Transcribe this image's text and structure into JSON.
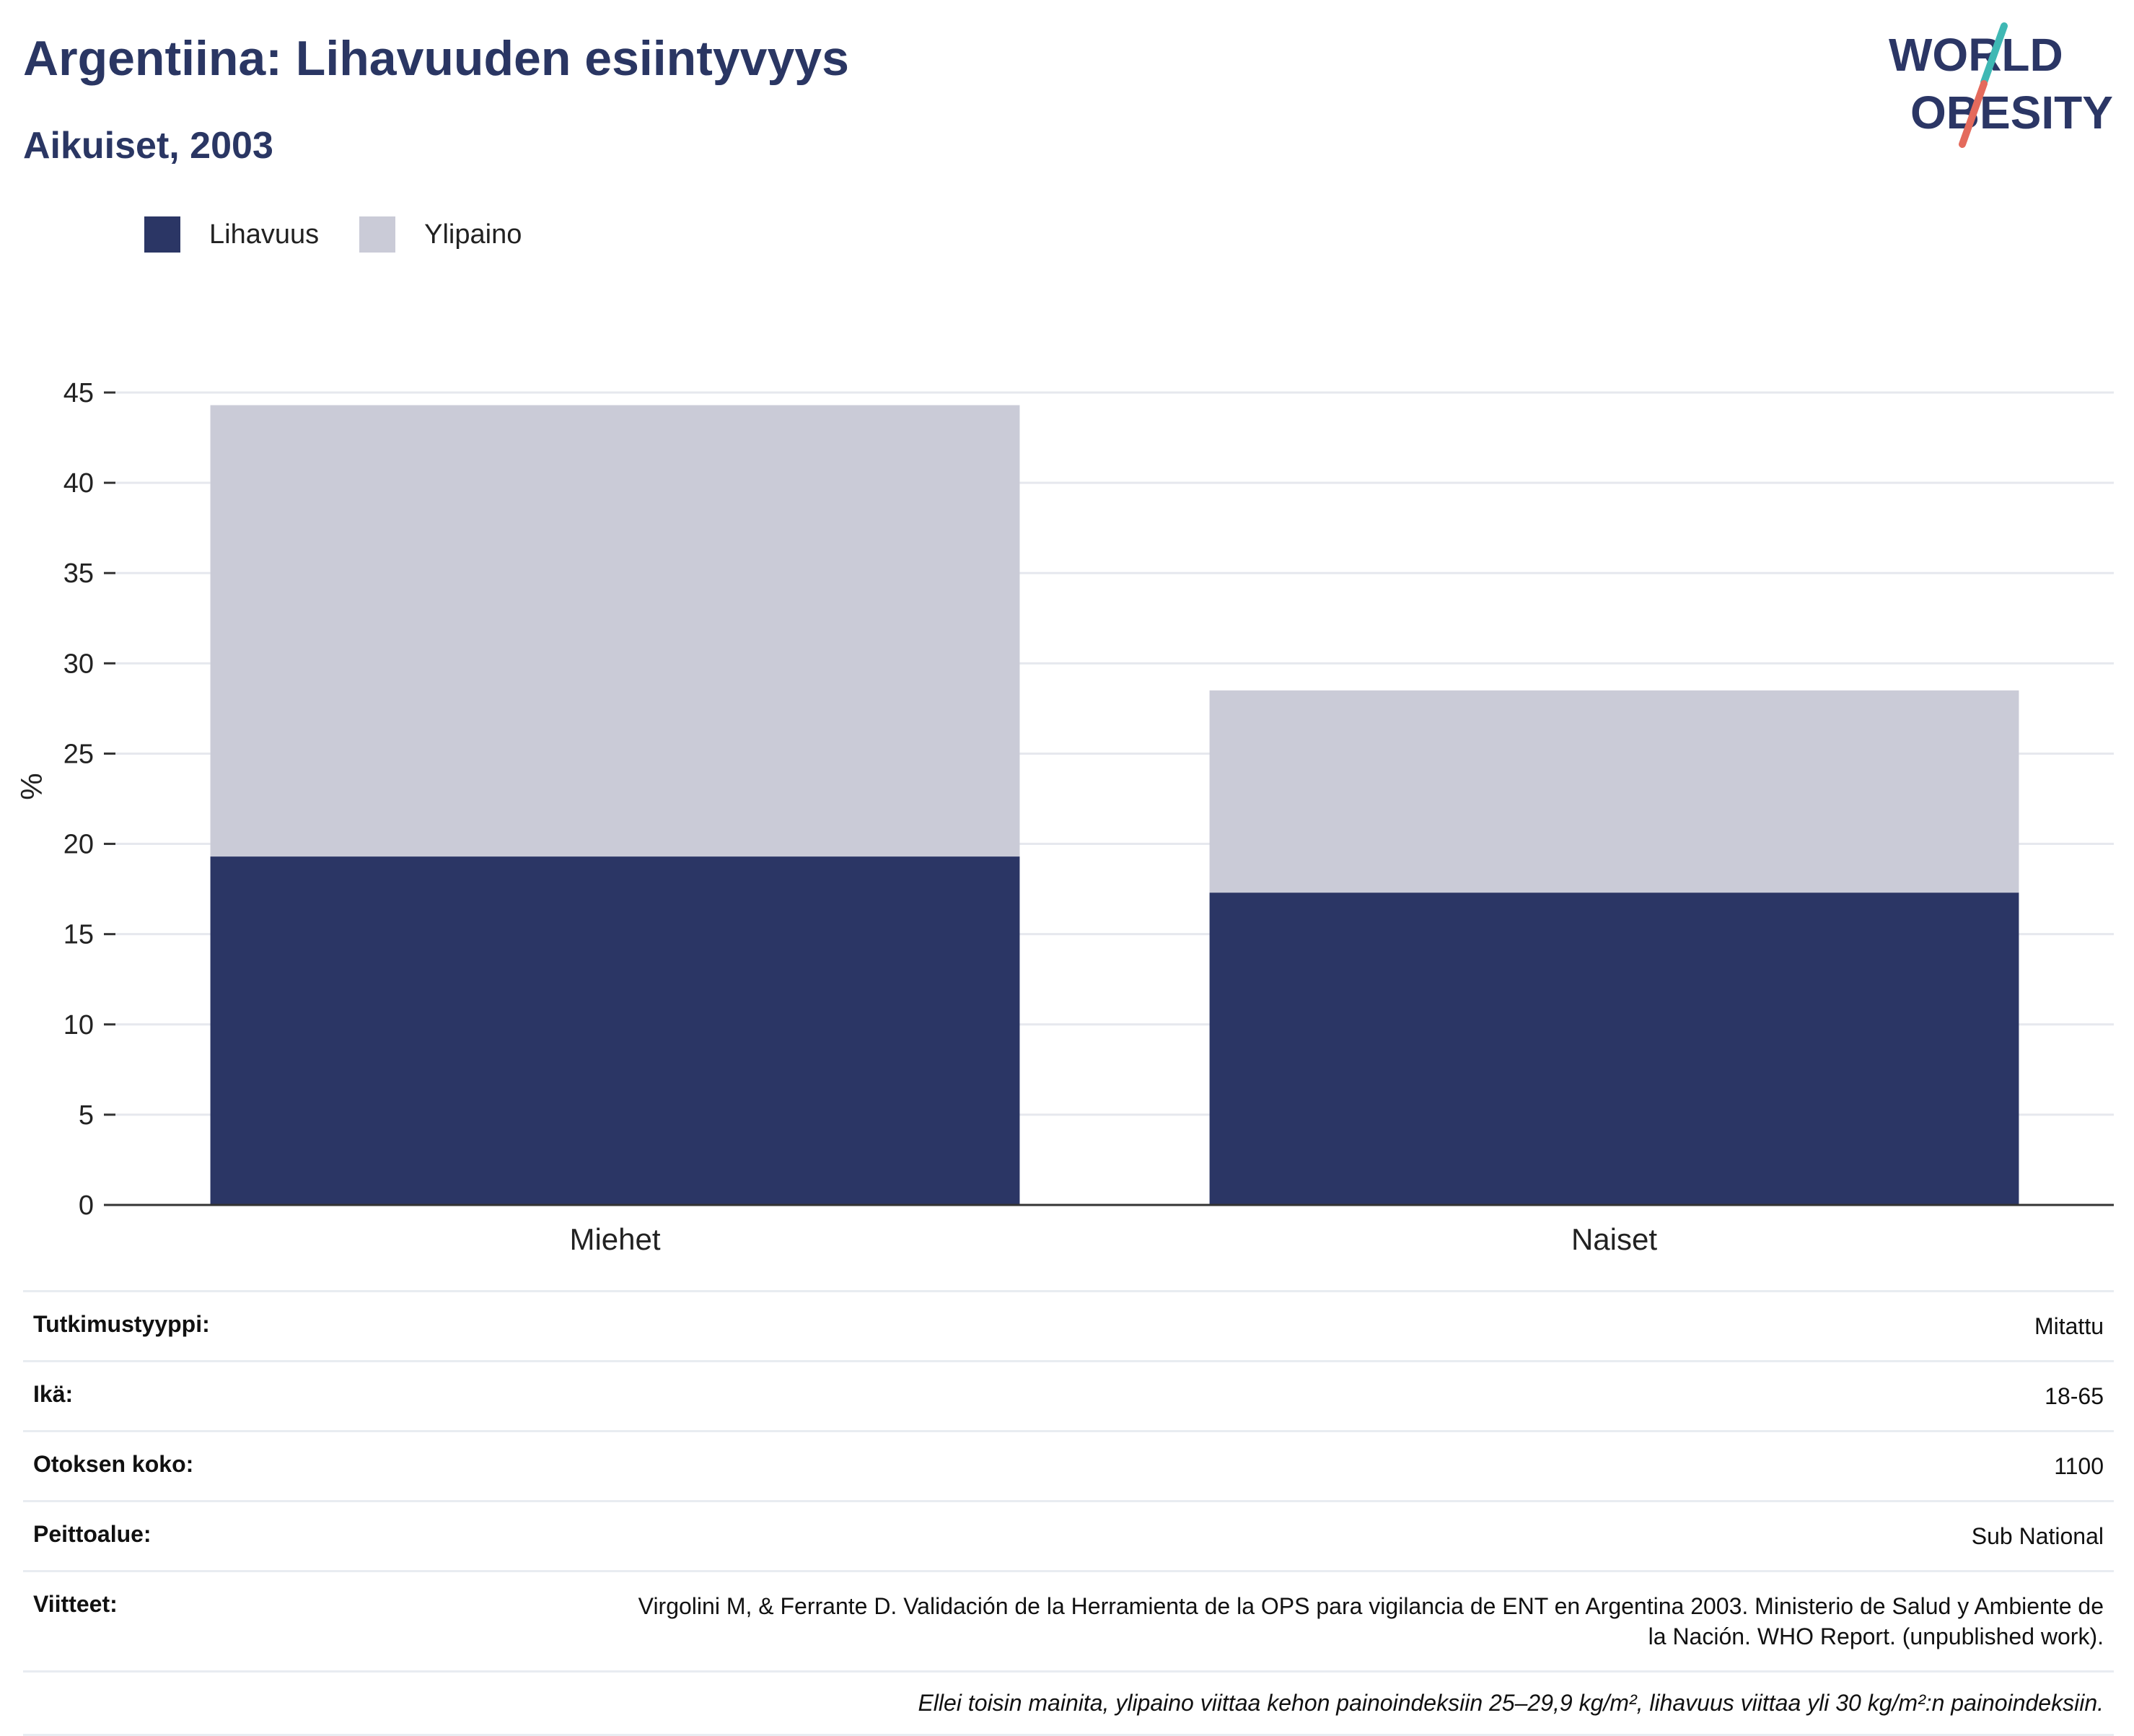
{
  "header": {
    "title": "Argentiina: Lihavuuden esiintyvyys",
    "subtitle": "Aikuiset, 2003",
    "logo_text": [
      "WORLD",
      "OBESITY"
    ]
  },
  "colors": {
    "obesity": "#2b3665",
    "overweight": "#cacbd7",
    "logo_navy": "#2b3665",
    "logo_teal": "#3fb8b4",
    "logo_coral": "#e46a5c"
  },
  "chart_data": {
    "type": "bar",
    "stacked": true,
    "categories": [
      "Miehet",
      "Naiset"
    ],
    "series": [
      {
        "name": "Lihavuus",
        "values": [
          19.3,
          17.3
        ]
      },
      {
        "name": "Ylipaino",
        "values": [
          25.0,
          11.2
        ]
      }
    ],
    "title": "Argentiina: Lihavuuden esiintyvyys",
    "subtitle": "Aikuiset, 2003",
    "xlabel": "",
    "ylabel": "%",
    "ylim": [
      0,
      45
    ],
    "yticks": [
      0,
      5,
      10,
      15,
      20,
      25,
      30,
      35,
      40,
      45
    ],
    "grid": true,
    "legend_position": "top-left"
  },
  "info": {
    "rows": [
      {
        "label": "Tutkimustyyppi:",
        "value": "Mitattu"
      },
      {
        "label": "Ikä:",
        "value": "18-65"
      },
      {
        "label": "Otoksen koko:",
        "value": "1100"
      },
      {
        "label": "Peittoalue:",
        "value": "Sub National"
      },
      {
        "label": "Viitteet:",
        "value": "Virgolini M, & Ferrante D. Validación de la Herramienta de la OPS para vigilancia de ENT en Argentina 2003. Ministerio de Salud y Ambiente de la Nación. WHO Report. (unpublished work)."
      }
    ],
    "note": "Ellei toisin mainita, ylipaino viittaa kehon painoindeksiin 25–29,9 kg/m², lihavuus viittaa yli 30 kg/m²:n painoindeksiin."
  }
}
